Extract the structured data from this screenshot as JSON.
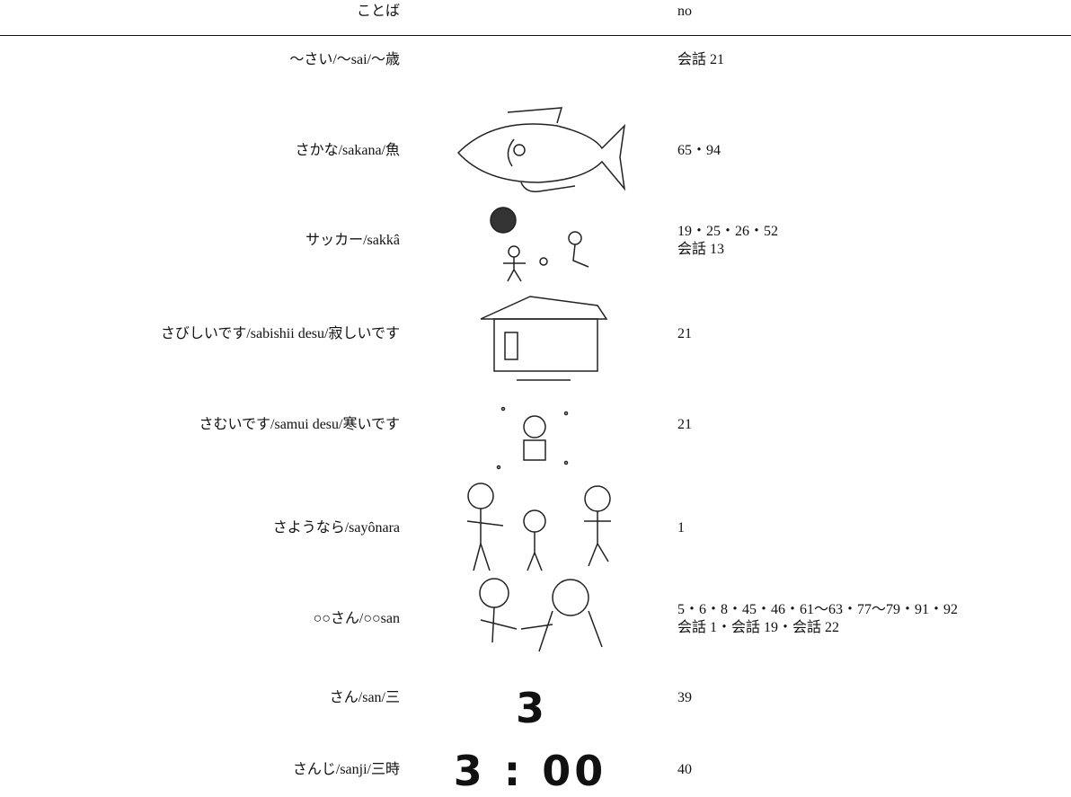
{
  "header": {
    "word": "ことば",
    "no": "no"
  },
  "rows": [
    {
      "word": "〜さい/〜sai/〜歳",
      "no": [
        "会話 21"
      ]
    },
    {
      "word": "さかな/sakana/魚",
      "no": [
        "65・94"
      ]
    },
    {
      "word": "サッカー/sakkâ",
      "no": [
        "19・25・26・52",
        "会話 13"
      ]
    },
    {
      "word": "さびしいです/sabishii desu/寂しいです",
      "no": [
        "21"
      ]
    },
    {
      "word": "さむいです/samui desu/寒いです",
      "no": [
        "21"
      ]
    },
    {
      "word": "さようなら/sayônara",
      "no": [
        "1"
      ]
    },
    {
      "word": "○○さん/○○san",
      "no": [
        "5・6・8・45・46・61〜63・77〜79・91・92",
        "会話 1・会話 19・会話 22"
      ]
    },
    {
      "word": "さん/san/三",
      "image_text": "3",
      "no": [
        "39"
      ]
    },
    {
      "word": "さんじ/sanji/三時",
      "image_text": "3 : 00",
      "no": [
        "40"
      ]
    }
  ]
}
